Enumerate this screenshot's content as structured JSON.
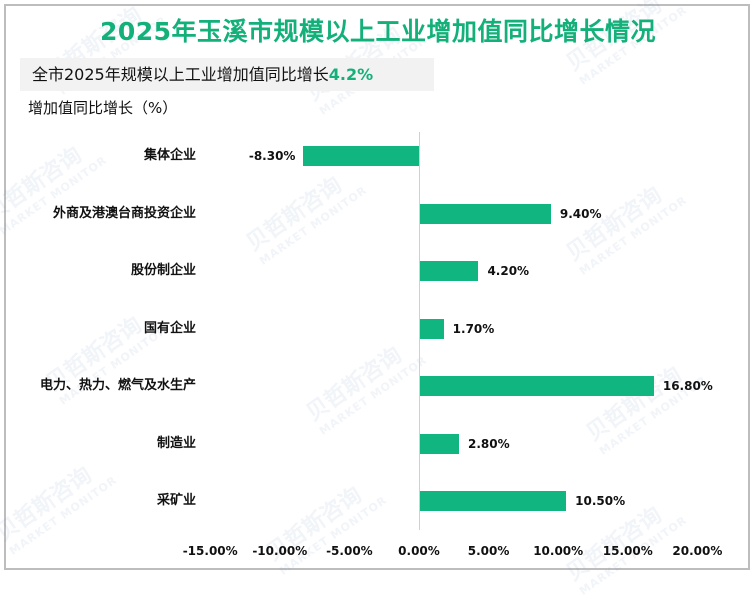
{
  "title": "2025年玉溪市规模以上工业增加值同比增长情况",
  "subtitle": {
    "prefix": "全市2025年规模以上工业增加值同比增长",
    "highlight": "4.2%"
  },
  "watermark": {
    "cn": "贝哲斯咨询",
    "en": "MARKET MONITOR"
  },
  "colors": {
    "title": "#14B07A",
    "bar": "#10B57F",
    "highlight": "#14B07A"
  },
  "chart_data": {
    "type": "bar",
    "orientation": "horizontal",
    "title": "2025年玉溪市规模以上工业增加值同比增长情况",
    "subtitle": "全市2025年规模以上工业增加值同比增长4.2%",
    "ylabel": "增加值同比增长（%）",
    "xlabel": "",
    "categories": [
      "集体企业",
      "外商及港澳台商投资企业",
      "股份制企业",
      "国有企业",
      "电力、热力、燃气及水生产",
      "制造业",
      "采矿业"
    ],
    "values": [
      -8.3,
      9.4,
      4.2,
      1.7,
      16.8,
      2.8,
      10.5
    ],
    "value_labels": [
      "-8.30%",
      "9.40%",
      "4.20%",
      "1.70%",
      "16.80%",
      "2.80%",
      "10.50%"
    ],
    "xlim": [
      -15,
      20
    ],
    "xticks": [
      "-15.00%",
      "-10.00%",
      "-5.00%",
      "0.00%",
      "5.00%",
      "10.00%",
      "15.00%",
      "20.00%"
    ],
    "grid": false,
    "legend": null
  }
}
